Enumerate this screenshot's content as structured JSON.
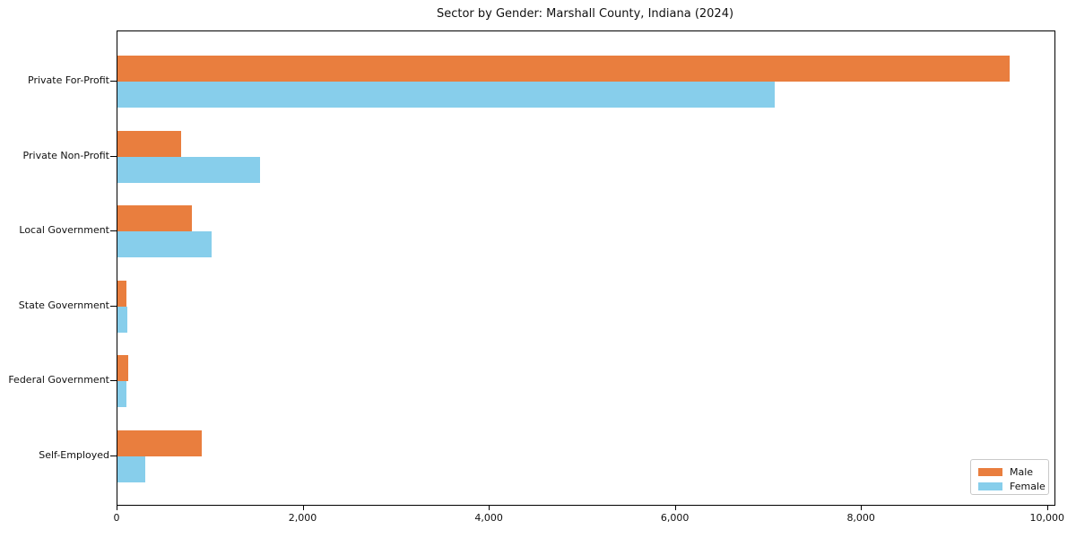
{
  "chart_data": {
    "type": "bar",
    "orientation": "horizontal",
    "title": "Sector by Gender: Marshall County, Indiana (2024)",
    "categories": [
      "Private For-Profit",
      "Private Non-Profit",
      "Local Government",
      "State Government",
      "Federal Government",
      "Self-Employed"
    ],
    "series": [
      {
        "name": "Male",
        "color": "#E97E3E",
        "values": [
          9590,
          685,
          795,
          95,
          115,
          905
        ]
      },
      {
        "name": "Female",
        "color": "#87CEEB",
        "values": [
          7060,
          1530,
          1010,
          105,
          100,
          295
        ]
      }
    ],
    "xlabel": "",
    "ylabel": "",
    "xlim": [
      0,
      10070
    ],
    "x_ticks": [
      0,
      2000,
      4000,
      6000,
      8000,
      10000
    ],
    "x_tick_labels": [
      "0",
      "2,000",
      "4,000",
      "6,000",
      "8,000",
      "10,000"
    ],
    "legend_position": "lower right",
    "grid": false,
    "frame_color": "#000000",
    "background_color": "#ffffff"
  }
}
